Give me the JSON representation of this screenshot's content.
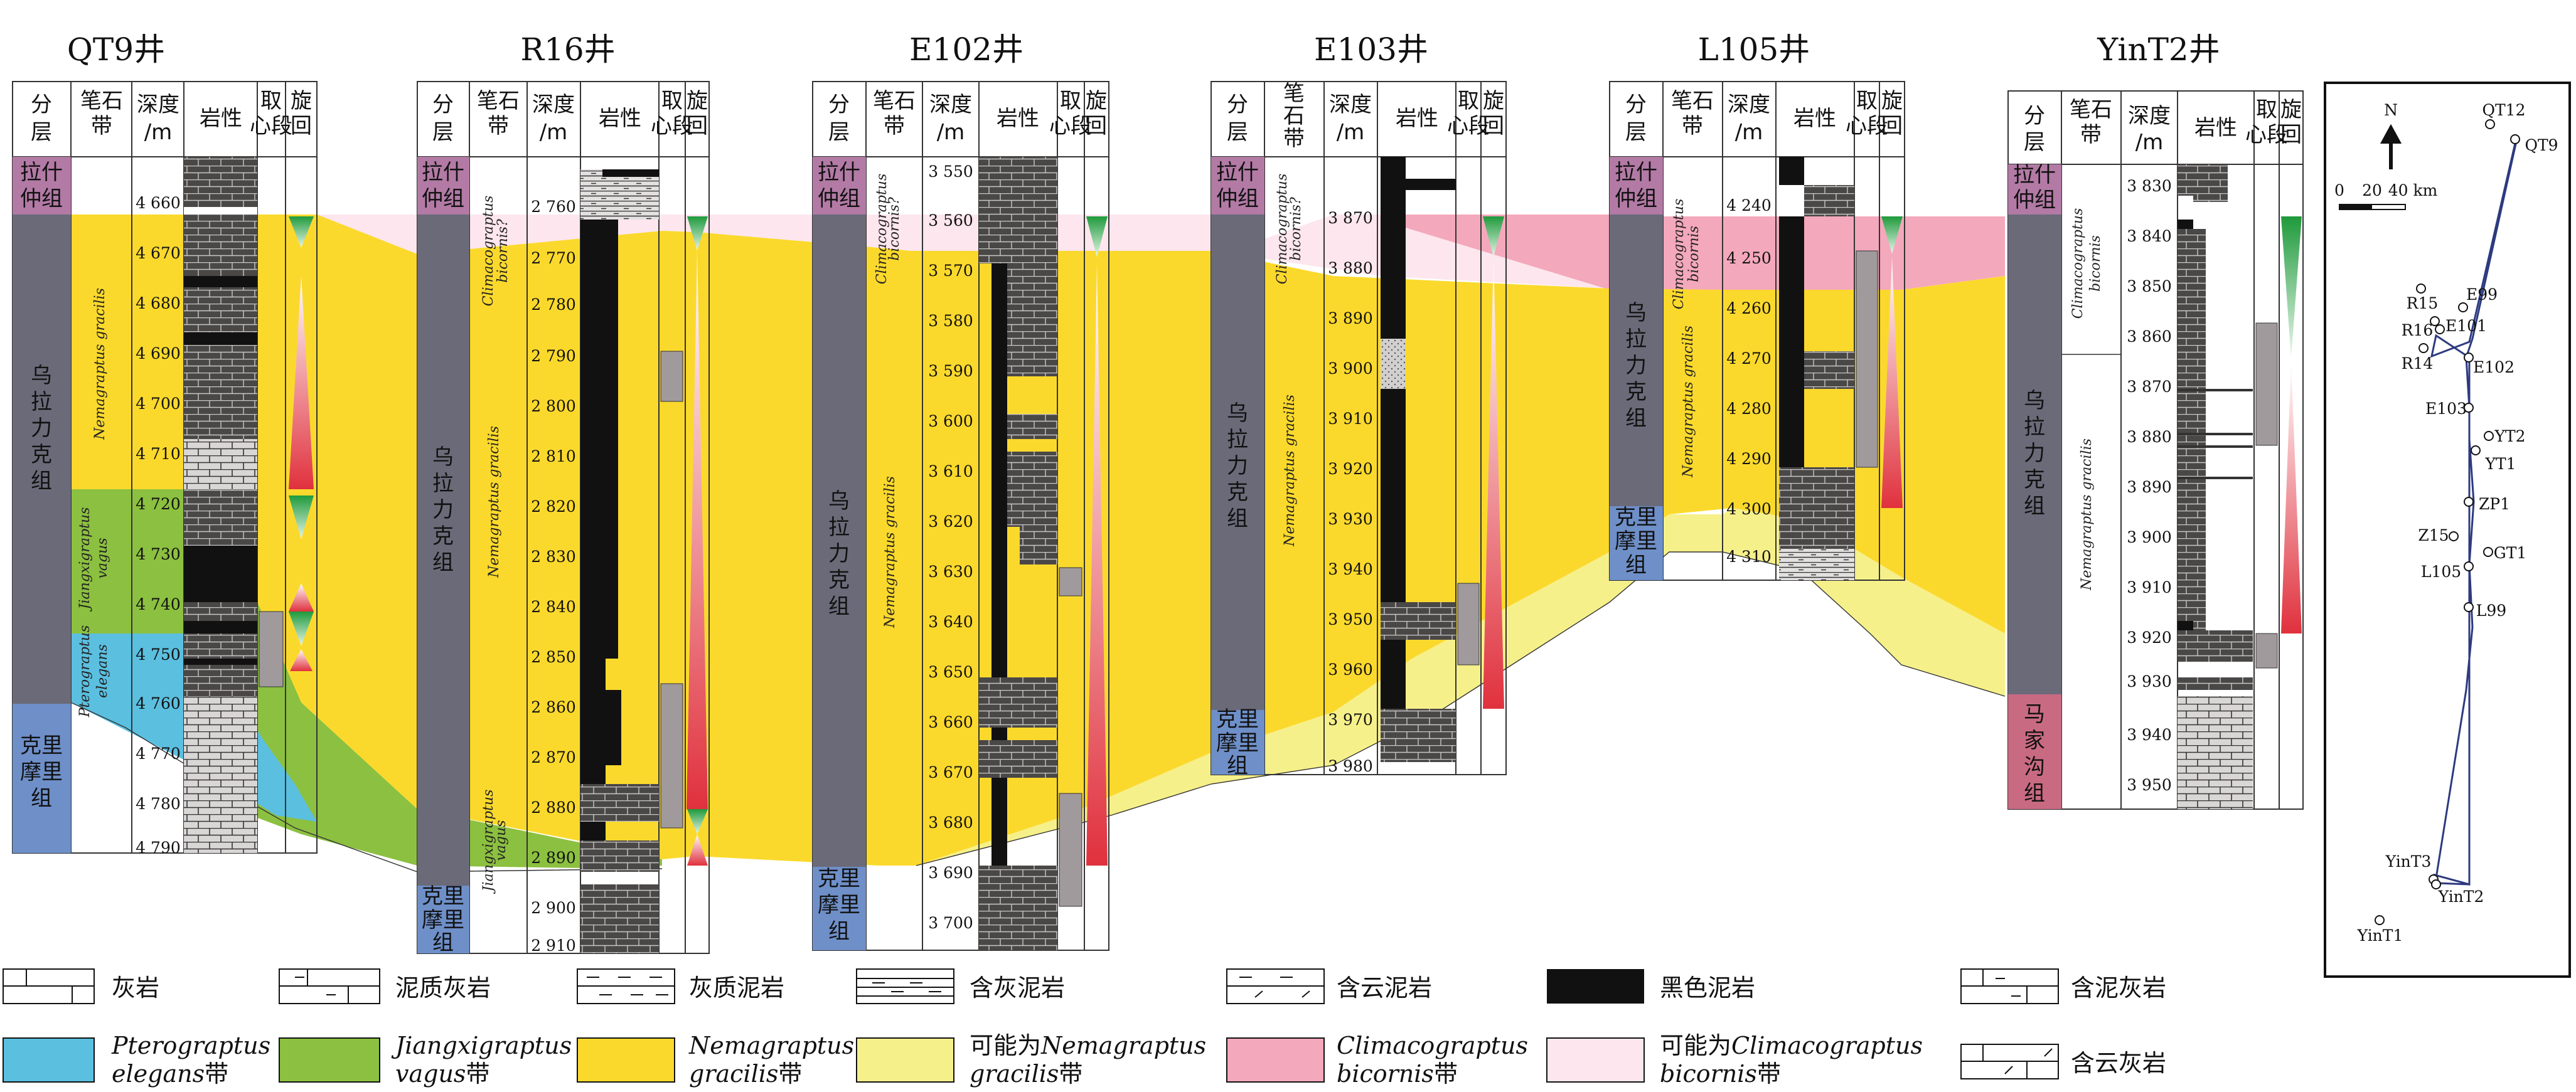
{
  "header_labels": {
    "strata": "分层",
    "graptolite": "笔石带",
    "depth": "深度/m",
    "lithology": "岩性",
    "core": "取心段",
    "cycle": "旋回"
  },
  "formations": {
    "lashizhong": "拉什仲组",
    "wulalike": "乌拉力克组",
    "kelimoli": "克里摩里组",
    "majiagou": "马家沟组"
  },
  "zones": {
    "nemagraptus": "Nemagraptus gracilis",
    "climacograptus": "Climacograptus bicornis",
    "climacograptus_q": "Climacograptus bicornis?",
    "jiangxigraptus": "Jiangxigraptus vagus",
    "pterograptus": "Pterograptus elegans"
  },
  "wells": [
    {
      "name": "QT9井",
      "depths": [
        "4 660",
        "4 670",
        "4 680",
        "4 690",
        "4 700",
        "4 710",
        "4 720",
        "4 730",
        "4 740",
        "4 750",
        "4 760",
        "4 770",
        "4 780",
        "4 790"
      ]
    },
    {
      "name": "R16井",
      "depths": [
        "2 760",
        "2 770",
        "2 780",
        "2 790",
        "2 800",
        "2 810",
        "2 820",
        "2 830",
        "2 840",
        "2 850",
        "2 860",
        "2 870",
        "2 880",
        "2 890",
        "2 900",
        "2 910"
      ]
    },
    {
      "name": "E102井",
      "depths": [
        "3 550",
        "3 560",
        "3 570",
        "3 580",
        "3 590",
        "3 600",
        "3 610",
        "3 620",
        "3 630",
        "3 640",
        "3 650",
        "3 660",
        "3 670",
        "3 680",
        "3 690",
        "3 700"
      ]
    },
    {
      "name": "E103井",
      "depths": [
        "3 870",
        "3 880",
        "3 890",
        "3 900",
        "3 910",
        "3 920",
        "3 930",
        "3 940",
        "3 950",
        "3 960",
        "3 970",
        "3 980"
      ]
    },
    {
      "name": "L105井",
      "depths": [
        "4 240",
        "4 250",
        "4 260",
        "4 270",
        "4 280",
        "4 290",
        "4 300",
        "4 310"
      ]
    },
    {
      "name": "YinT2井",
      "depths": [
        "3 830",
        "3 840",
        "3 850",
        "3 860",
        "3 870",
        "3 880",
        "3 890",
        "3 900",
        "3 910",
        "3 920",
        "3 930",
        "3 940",
        "3 950"
      ]
    }
  ],
  "map": {
    "north": "N",
    "scale": [
      "0",
      "20",
      "40 km"
    ],
    "wells": [
      "QT12",
      "QT9",
      "R15",
      "E99",
      "R16",
      "E101",
      "R14",
      "E102",
      "E103",
      "YT2",
      "YT1",
      "ZP1",
      "Z15",
      "GT1",
      "L105",
      "L99",
      "YinT3",
      "YinT2",
      "YinT1"
    ]
  },
  "legend": [
    {
      "label": "灰岩"
    },
    {
      "label": "泥质灰岩"
    },
    {
      "label": "灰质泥岩"
    },
    {
      "label": "含灰泥岩"
    },
    {
      "label": "含云泥岩"
    },
    {
      "label": "黑色泥岩"
    },
    {
      "label": "含泥灰岩"
    },
    {
      "label": "含云灰岩"
    },
    {
      "italic": "Pterograptus",
      "line2": "elegans",
      "suffix": "带",
      "color": "#5bbfe0"
    },
    {
      "italic": "Jiangxigraptus",
      "line2": "vagus",
      "suffix": "带",
      "color": "#8cc040"
    },
    {
      "italic": "Nemagraptus",
      "line2": "gracilis",
      "suffix": "带",
      "color": "#fbd92c"
    },
    {
      "prefix": "可能为",
      "italic": "Nemagraptus",
      "line2": "gracilis",
      "suffix": "带",
      "color": "#f6f08a"
    },
    {
      "italic": "Climacograptus",
      "line2": "bicornis",
      "suffix": "带",
      "color": "#f4a8bc"
    },
    {
      "prefix": "可能为",
      "italic": "Climacograptus",
      "line2": "bicornis",
      "suffix": "带",
      "color": "#fde6ee"
    }
  ],
  "colors": {
    "formation_grey": "#6b6a79",
    "lashizhong": "#b27aa5",
    "kelimoli": "#6e8fc8",
    "majiagou": "#c96a83",
    "nemagraptus": "#fbd92c",
    "nemagraptus_possible": "#f6f08a",
    "climacograptus": "#f4a8bc",
    "climacograptus_possible": "#fde6ee",
    "jiangxigraptus": "#8cc040",
    "pterograptus": "#5bbfe0",
    "core_fill": "#a09a9c"
  }
}
